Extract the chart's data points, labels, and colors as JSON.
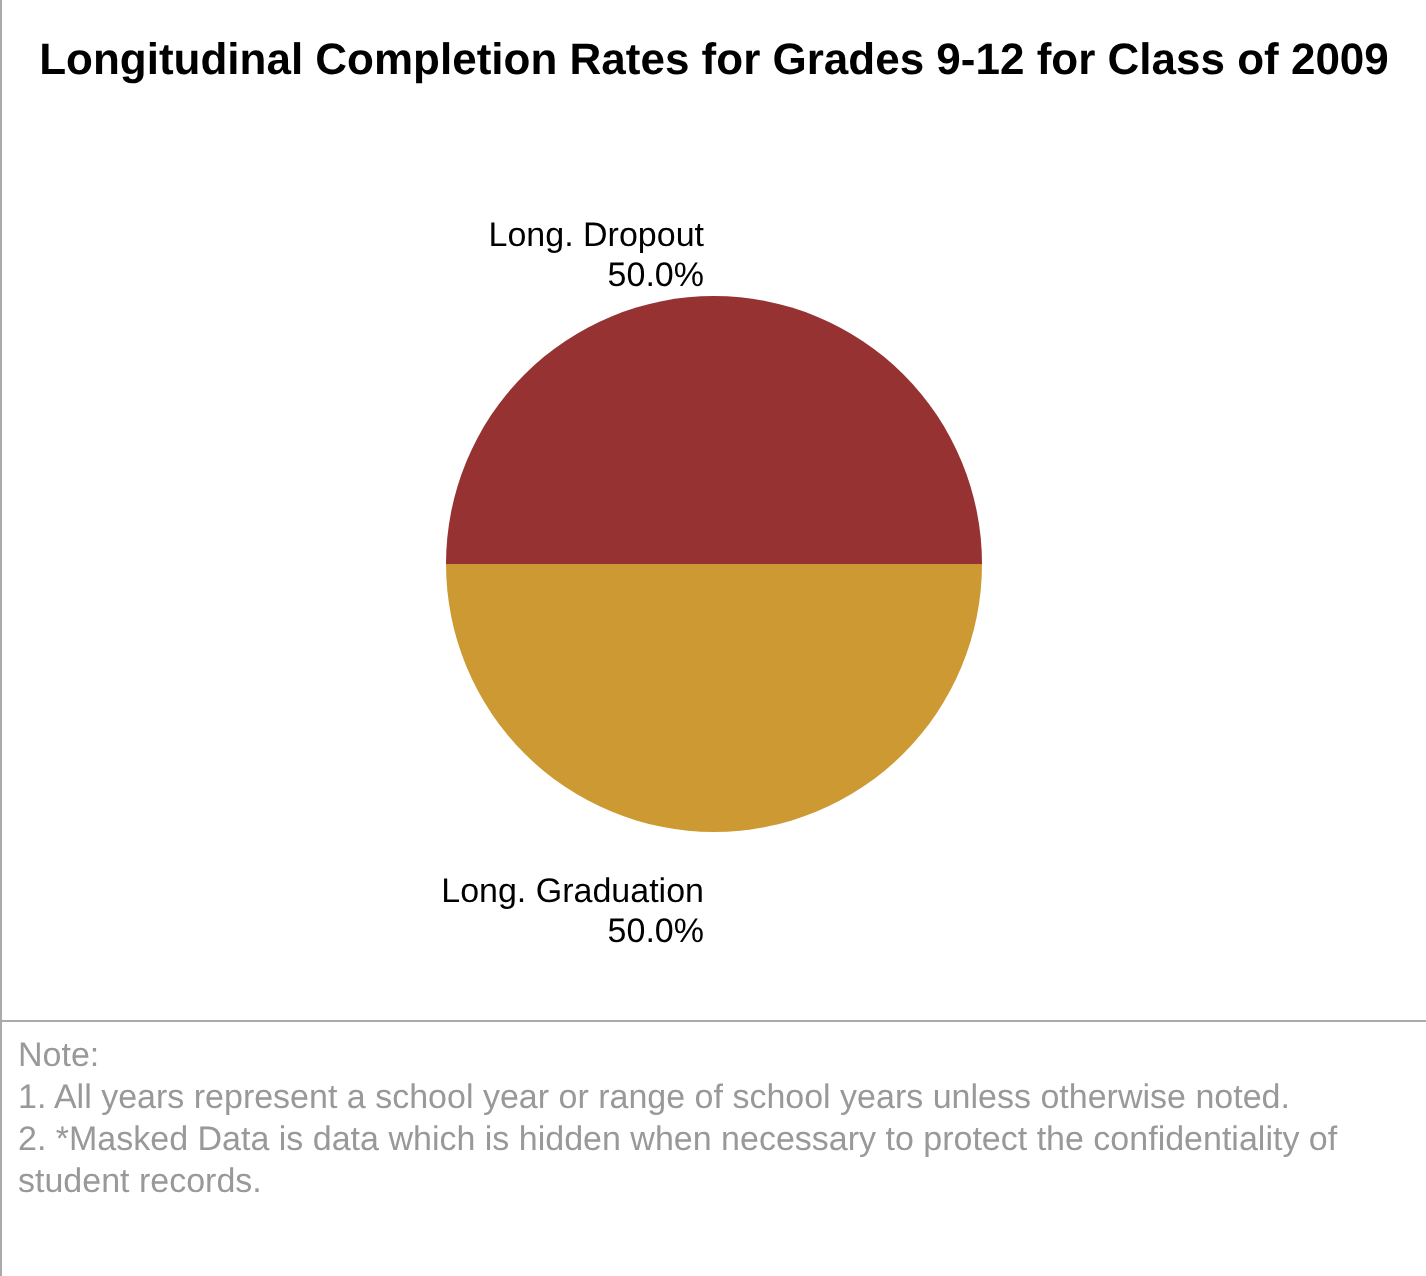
{
  "chart_data": {
    "type": "pie",
    "title": "Longitudinal Completion Rates for Grades 9-12 for Class of 2009",
    "categories": [
      "Long. Dropout",
      "Long. Graduation"
    ],
    "values": [
      50,
      50
    ],
    "colors": [
      "#963232",
      "#cc9933"
    ],
    "value_labels": [
      "50.0%",
      "50.0%"
    ],
    "annotations": [
      "Note:",
      "1. All years represent a school year or range of school years unless otherwise noted.",
      "2. *Masked Data is data which is hidden when necessary to protect the confidentiality of student records."
    ]
  }
}
